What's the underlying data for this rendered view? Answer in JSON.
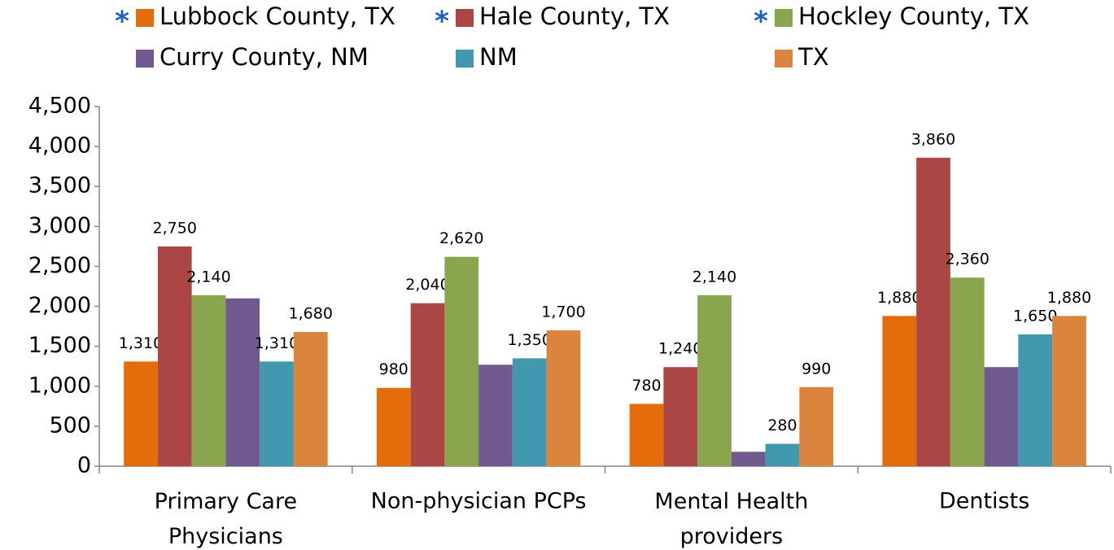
{
  "chart_data": {
    "type": "bar",
    "categories": [
      "Primary Care Physicians",
      "Non-physician PCPs",
      "Mental Health providers",
      "Dentists"
    ],
    "series": [
      {
        "name": "Lubbock County, TX",
        "legend_prefix": "*",
        "color": "#e46c0a",
        "values": [
          1310,
          980,
          780,
          1880
        ],
        "value_labels": [
          "1,310",
          "980",
          "780",
          "1,880"
        ]
      },
      {
        "name": "Hale County, TX",
        "legend_prefix": "*",
        "color": "#aa4643",
        "values": [
          2750,
          2040,
          1240,
          3860
        ],
        "value_labels": [
          "2,750",
          "2,040",
          "1,240",
          "3,860"
        ]
      },
      {
        "name": "Hockley County, TX",
        "legend_prefix": "*",
        "color": "#89a54e",
        "values": [
          2140,
          2620,
          2140,
          2360
        ],
        "value_labels": [
          "2,140",
          "2,620",
          "2,140",
          "2,360"
        ]
      },
      {
        "name": "Curry County, NM",
        "color": "#71588f",
        "values": [
          2100,
          1270,
          180,
          1240
        ]
      },
      {
        "name": "NM",
        "color": "#4198af",
        "values": [
          1310,
          1350,
          280,
          1650
        ],
        "value_labels": [
          "1,310",
          "1,350",
          "280",
          "1,650"
        ]
      },
      {
        "name": "TX",
        "color": "#db843d",
        "values": [
          1680,
          1700,
          990,
          1880
        ],
        "value_labels": [
          "1,680",
          "1,700",
          "990",
          "1,880"
        ]
      }
    ],
    "ylim": [
      0,
      4500
    ],
    "yticks": [
      0,
      500,
      {
        "value": 1000,
        "label": "1,000"
      },
      {
        "value": 1500,
        "label": "1,500"
      },
      {
        "value": 2000,
        "label": "2,000"
      },
      {
        "value": 2500,
        "label": "2,500"
      },
      {
        "value": 3000,
        "label": "3,000"
      },
      {
        "value": 3500,
        "label": "3,500"
      },
      {
        "value": 4000,
        "label": "4,000"
      },
      {
        "value": 4500,
        "label": "4,500"
      }
    ],
    "grid": false,
    "legend": "top"
  }
}
